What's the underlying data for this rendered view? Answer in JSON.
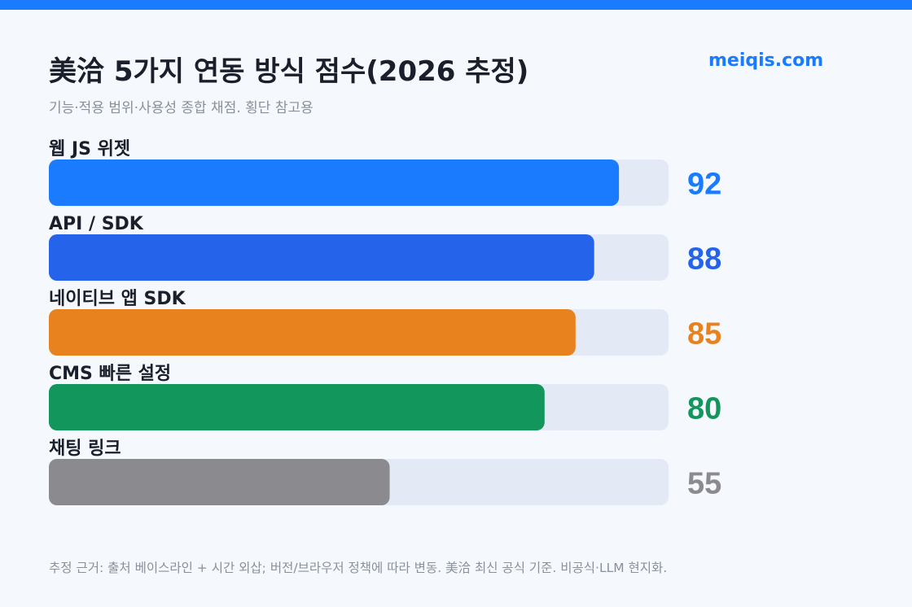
{
  "header": {
    "title": "美洽 5가지 연동 방식 점수(2026 추정)",
    "brand": "meiqis.com",
    "subtitle": "기능·적용 범위·사용성 종합 채점. 횡단 참고용"
  },
  "footer": {
    "note": "추정 근거: 출처 베이스라인 + 시간 외삽; 버전/브라우저 정책에 따라 변동. 美洽 최신 공식 기준. 비공식·LLM 현지화."
  },
  "chart_data": {
    "type": "bar",
    "orientation": "horizontal",
    "title": "美洽 5가지 연동 방식 점수(2026 추정)",
    "subtitle": "기능·적용 범위·사용성 종합 채점. 횡단 참고용",
    "categories": [
      "웹 JS 위젯",
      "API / SDK",
      "네이티브 앱 SDK",
      "CMS 빠른 설정",
      "채팅 링크"
    ],
    "values": [
      92,
      88,
      85,
      80,
      55
    ],
    "colors": [
      "#1a7bff",
      "#2563eb",
      "#e8821e",
      "#12965b",
      "#8a8a8f"
    ],
    "track_color": "#e3eaf5",
    "xlim": [
      0,
      100
    ],
    "grid": false,
    "legend": "none"
  }
}
